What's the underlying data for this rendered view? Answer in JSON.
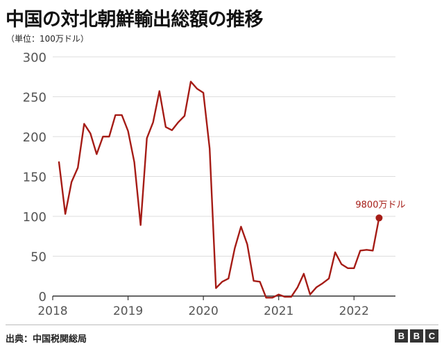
{
  "title": "中国の対北朝鮮輸出総額の推移",
  "subtitle": "（単位：100万ドル）",
  "source": "出典：中国税関総局",
  "logo": [
    "B",
    "B",
    "C"
  ],
  "colors": {
    "line": "#a51c16",
    "axis": "#333333",
    "grid": "#dddddd",
    "tick_text": "#555555"
  },
  "chart_data": {
    "type": "line",
    "title": "中国の対北朝鮮輸出総額の推移",
    "ylabel": "単位：100万ドル",
    "xlabel": "",
    "ylim": [
      0,
      300
    ],
    "xlim": [
      2018.0,
      2022.55
    ],
    "y_ticks": [
      0,
      50,
      100,
      150,
      200,
      250,
      300
    ],
    "x_ticks": [
      2018,
      2019,
      2020,
      2021,
      2022
    ],
    "grid": true,
    "series": [
      {
        "name": "中国の対北朝鮮輸出総額",
        "x": [
          2018.083,
          2018.167,
          2018.25,
          2018.333,
          2018.417,
          2018.5,
          2018.583,
          2018.667,
          2018.75,
          2018.833,
          2018.917,
          2019.0,
          2019.083,
          2019.167,
          2019.25,
          2019.333,
          2019.417,
          2019.5,
          2019.583,
          2019.667,
          2019.75,
          2019.833,
          2019.917,
          2020.0,
          2020.083,
          2020.167,
          2020.25,
          2020.333,
          2020.417,
          2020.5,
          2020.583,
          2020.667,
          2020.75,
          2020.833,
          2020.917,
          2021.0,
          2021.083,
          2021.167,
          2021.25,
          2021.333,
          2021.417,
          2021.5,
          2021.583,
          2021.667,
          2021.75,
          2021.833,
          2021.917,
          2022.0,
          2022.083,
          2022.167,
          2022.25,
          2022.333
        ],
        "values": [
          168,
          103,
          143,
          161,
          216,
          204,
          178,
          200,
          200,
          227,
          227,
          207,
          168,
          89,
          198,
          218,
          257,
          212,
          208,
          218,
          226,
          269,
          260,
          255,
          185,
          10,
          18,
          22,
          60,
          87,
          65,
          19,
          18,
          -2,
          -2,
          2,
          -1,
          -1,
          11,
          28,
          2,
          11,
          16,
          22,
          55,
          40,
          35,
          35,
          57,
          58,
          57,
          98
        ]
      }
    ],
    "annotations": [
      {
        "text": "9800万ドル",
        "x": 2022.333,
        "y": 98
      }
    ]
  }
}
